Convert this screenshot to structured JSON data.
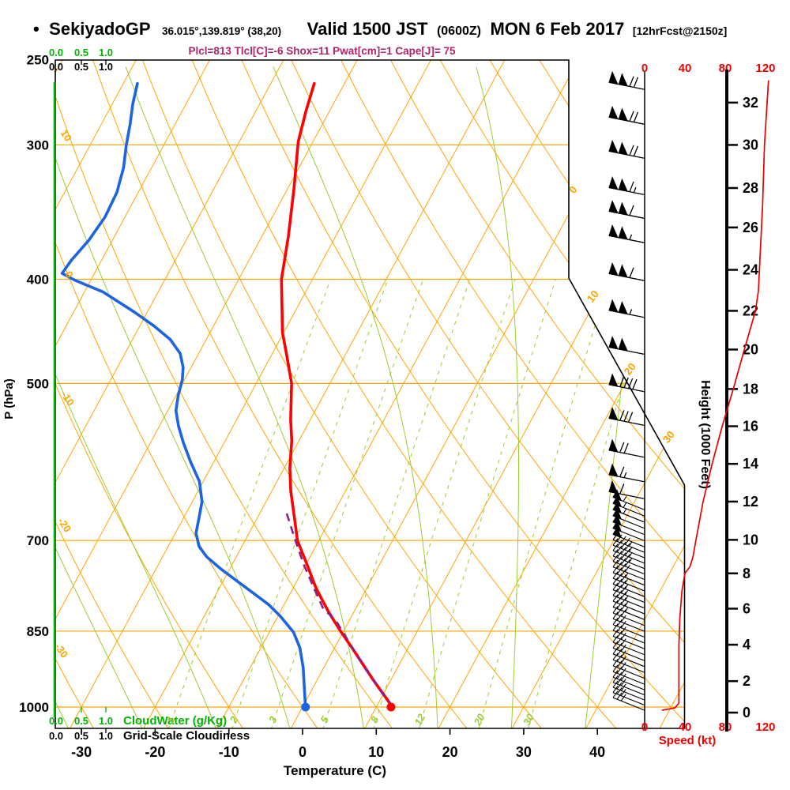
{
  "header": {
    "bullet": "•",
    "station": "SekiyadoGP",
    "coords": "36.015°,139.819° (38,20)",
    "valid_main": "Valid 1500 JST",
    "valid_z": "(0600Z)",
    "valid_date": "MON 6 Feb 2017",
    "fcst_tag": "[12hrFcst@2150z]",
    "stats": "Plcl=813 Tlcl[C]=-6 Shox=11 Pwat[cm]=1 Cape[J]= 75"
  },
  "colors": {
    "grid_orange": "#FFA500",
    "field_green": "#9ACD32",
    "axis_green": "#00B400",
    "temperature_red": "#FF0000",
    "dewpoint_blue": "#1C64E0",
    "parcel_purple": "#882288",
    "speed_red": "#E60000",
    "red_text": "#F00000",
    "stats_magenta": "#B02468",
    "black": "#000000"
  },
  "chart_data": {
    "type": "skewt_log_p_sounding",
    "pressure_axis": {
      "label": "P (hPa)",
      "ticks": [
        250,
        300,
        400,
        500,
        700,
        850,
        1000
      ],
      "range": [
        250,
        1050
      ],
      "isobar_lines": [
        300,
        400,
        500,
        700,
        850,
        1000
      ]
    },
    "temperature_axis": {
      "label": "Temperature (C)",
      "ticks": [
        -30,
        -20,
        -10,
        0,
        10,
        20,
        30,
        40
      ],
      "units": "C"
    },
    "speed_axis": {
      "label": "Speed (kt)",
      "ticks": [
        0,
        40,
        80,
        120
      ]
    },
    "height_axis": {
      "label": "Height (1000 Feet)",
      "tick_labels": [
        0,
        2,
        4,
        6,
        8,
        10,
        12,
        14,
        16,
        18,
        20,
        22,
        24,
        26,
        28,
        30,
        32
      ],
      "height_pressure_map": [
        [
          0,
          1012
        ],
        [
          2,
          946
        ],
        [
          4,
          875
        ],
        [
          6,
          810
        ],
        [
          8,
          751
        ],
        [
          10,
          699
        ],
        [
          12,
          644
        ],
        [
          14,
          594
        ],
        [
          16,
          548
        ],
        [
          18,
          506
        ],
        [
          20,
          465
        ],
        [
          22,
          428
        ],
        [
          24,
          392
        ],
        [
          26,
          358
        ],
        [
          28,
          329
        ],
        [
          30,
          300
        ],
        [
          32,
          274
        ],
        [
          34,
          249
        ]
      ]
    },
    "cloud_scale": {
      "tick_labels": [
        "0.0",
        "0.5",
        "1.0"
      ],
      "cloudwater_label": "CloudWater (g/Kg)",
      "cloudiness_label": "Grid-Scale Cloudiness"
    },
    "isotherm_family": {
      "start": -120,
      "end": 50,
      "step": 10,
      "labels": [
        0,
        10,
        20,
        30
      ]
    },
    "dry_adiabat_family": {
      "start": -40,
      "end": 140,
      "step": 10,
      "labels": [
        10,
        0,
        -10,
        -20,
        -30
      ]
    },
    "moist_adiabat_family": {
      "start": -40,
      "end": 40,
      "step": 10
    },
    "mixing_ratio_lines": {
      "values": [
        1,
        2,
        3,
        5,
        8,
        12,
        20,
        30
      ],
      "top_pressure": 398
    },
    "temperature_profile": [
      [
        1000,
        12.2
      ],
      [
        940,
        7.3
      ],
      [
        880,
        2.3
      ],
      [
        850,
        -0.4
      ],
      [
        815,
        -3.5
      ],
      [
        775,
        -6.9
      ],
      [
        735,
        -10.0
      ],
      [
        700,
        -12.9
      ],
      [
        660,
        -15.4
      ],
      [
        630,
        -17.4
      ],
      [
        600,
        -19.2
      ],
      [
        565,
        -21.0
      ],
      [
        540,
        -22.7
      ],
      [
        500,
        -25.2
      ],
      [
        471,
        -27.9
      ],
      [
        448,
        -30.2
      ],
      [
        400,
        -34.2
      ],
      [
        365,
        -36.4
      ],
      [
        330,
        -39.1
      ],
      [
        298,
        -42.0
      ],
      [
        279,
        -43.2
      ],
      [
        263,
        -44.1
      ]
    ],
    "dewpoint_profile": [
      [
        1000,
        0.4
      ],
      [
        959,
        -1.2
      ],
      [
        919,
        -2.8
      ],
      [
        881,
        -4.7
      ],
      [
        852,
        -6.7
      ],
      [
        823,
        -9.7
      ],
      [
        803,
        -12.1
      ],
      [
        783,
        -15.1
      ],
      [
        763,
        -18.2
      ],
      [
        744,
        -21.2
      ],
      [
        725,
        -24.0
      ],
      [
        709,
        -25.8
      ],
      [
        689,
        -27.2
      ],
      [
        667,
        -27.9
      ],
      [
        644,
        -28.7
      ],
      [
        617,
        -30.5
      ],
      [
        592,
        -33.1
      ],
      [
        567,
        -35.6
      ],
      [
        548,
        -37.4
      ],
      [
        530,
        -38.9
      ],
      [
        513,
        -39.7
      ],
      [
        496,
        -40.3
      ],
      [
        483,
        -41.1
      ],
      [
        469,
        -42.5
      ],
      [
        455,
        -44.9
      ],
      [
        442,
        -48.1
      ],
      [
        429,
        -51.8
      ],
      [
        411,
        -57.5
      ],
      [
        401,
        -62.1
      ],
      [
        395,
        -64.4
      ],
      [
        384,
        -64.1
      ],
      [
        368,
        -63.2
      ],
      [
        350,
        -62.7
      ],
      [
        332,
        -62.9
      ],
      [
        315,
        -63.8
      ],
      [
        300,
        -65.1
      ],
      [
        287,
        -66.1
      ],
      [
        275,
        -67.2
      ],
      [
        263,
        -68.1
      ]
    ],
    "parcel_profile": [
      [
        1000,
        12.2
      ],
      [
        927,
        6.2
      ],
      [
        866,
        1.2
      ],
      [
        830,
        -1.9
      ],
      [
        810,
        -4.4
      ],
      [
        776,
        -7.1
      ],
      [
        738,
        -10.2
      ],
      [
        701,
        -13.1
      ],
      [
        672,
        -15.4
      ],
      [
        655,
        -16.8
      ]
    ],
    "surface_temperature_c": 12,
    "surface_dewpoint_c": 0.4,
    "wind_speed_profile_kft_kt": [
      [
        0.15,
        17
      ],
      [
        0.3,
        30
      ],
      [
        0.6,
        34
      ],
      [
        2,
        34
      ],
      [
        4,
        34
      ],
      [
        5.5,
        35
      ],
      [
        7,
        37
      ],
      [
        8,
        40
      ],
      [
        8.4,
        45
      ],
      [
        9,
        48
      ],
      [
        10,
        51
      ],
      [
        12,
        58
      ],
      [
        14,
        67
      ],
      [
        16,
        77
      ],
      [
        18,
        88
      ],
      [
        20,
        99
      ],
      [
        22,
        110
      ],
      [
        23,
        113
      ],
      [
        25,
        115
      ],
      [
        27,
        117
      ],
      [
        30,
        119
      ],
      [
        33,
        123
      ]
    ],
    "wind_barbs": [
      {
        "kft": 32.8,
        "flags": 2,
        "full": 2,
        "half": 0
      },
      {
        "kft": 31.2,
        "flags": 2,
        "full": 2,
        "half": 0
      },
      {
        "kft": 29.6,
        "flags": 2,
        "full": 2,
        "half": 0
      },
      {
        "kft": 27.9,
        "flags": 2,
        "full": 1,
        "half": 1
      },
      {
        "kft": 26.7,
        "flags": 2,
        "full": 1,
        "half": 0
      },
      {
        "kft": 25.5,
        "flags": 2,
        "full": 0,
        "half": 1
      },
      {
        "kft": 23.7,
        "flags": 2,
        "full": 1,
        "half": 0
      },
      {
        "kft": 21.9,
        "flags": 2,
        "full": 0,
        "half": 1
      },
      {
        "kft": 20.0,
        "flags": 2,
        "full": 0,
        "half": 0
      },
      {
        "kft": 18.1,
        "flags": 1,
        "full": 4,
        "half": 0
      },
      {
        "kft": 16.3,
        "flags": 1,
        "full": 3,
        "half": 0
      },
      {
        "kft": 14.6,
        "flags": 1,
        "full": 2,
        "half": 0
      },
      {
        "kft": 13.3,
        "flags": 1,
        "full": 1,
        "half": 1
      },
      {
        "kft": 12.4,
        "flags": 1,
        "full": 1,
        "half": 0
      }
    ],
    "wind_barb_dense_band": {
      "top_kft": 11.9,
      "bottom_kft": 0.55,
      "rows": 36
    }
  }
}
